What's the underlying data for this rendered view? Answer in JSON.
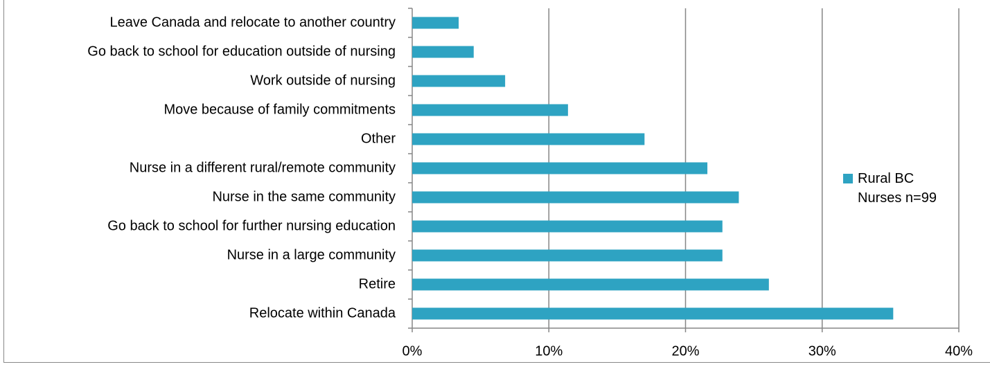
{
  "chart_data": {
    "type": "bar",
    "orientation": "horizontal",
    "categories": [
      "Leave Canada and relocate to another country",
      "Go back to school for education outside of nursing",
      "Work outside of nursing",
      "Move because of family commitments",
      "Other",
      "Nurse in a different rural/remote community",
      "Nurse in the same community",
      "Go back to school for further nursing education",
      "Nurse in a large community",
      "Retire",
      "Relocate within Canada"
    ],
    "series": [
      {
        "name": "Rural BC Nurses n=99",
        "color": "#2ea3c2",
        "values": [
          3.4,
          4.5,
          6.8,
          11.4,
          17.0,
          21.6,
          23.9,
          22.7,
          22.7,
          26.1,
          35.2
        ]
      }
    ],
    "xlim": [
      0,
      40
    ],
    "xticks": [
      {
        "value": 0,
        "label": "0%"
      },
      {
        "value": 10,
        "label": "10%"
      },
      {
        "value": 20,
        "label": "20%"
      },
      {
        "value": 30,
        "label": "30%"
      },
      {
        "value": 40,
        "label": "40%"
      }
    ],
    "grid": true,
    "legend": "right"
  }
}
